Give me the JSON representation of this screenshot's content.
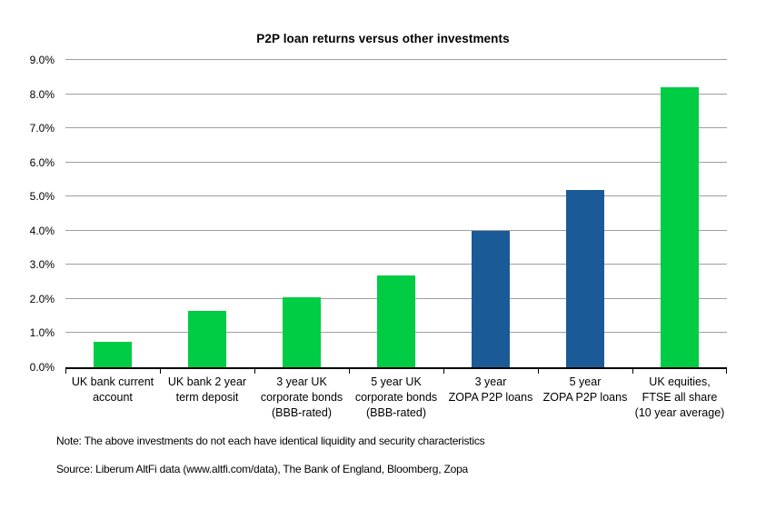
{
  "chart_data": {
    "type": "bar",
    "title": "P2P loan returns versus other investments",
    "categories": [
      "UK bank current\naccount",
      "UK bank 2 year\nterm deposit",
      "3 year UK\ncorporate bonds\n(BBB-rated)",
      "5 year UK\ncorporate bonds\n(BBB-rated)",
      "3 year\nZOPA P2P loans",
      "5 year\nZOPA P2P loans",
      "UK equities,\nFTSE all share\n(10 year average)"
    ],
    "values": [
      0.75,
      1.65,
      2.05,
      2.7,
      4.0,
      5.2,
      8.2
    ],
    "unit": "%",
    "bar_colors": [
      "#00CC44",
      "#00CC44",
      "#00CC44",
      "#00CC44",
      "#1A5A96",
      "#1A5A96",
      "#00CC44"
    ],
    "accent_green": "#00CC44",
    "accent_blue": "#1A5A96",
    "gridline_color": "#9E9E9E",
    "axis_color": "#000000",
    "ylim": [
      0,
      9
    ],
    "y_tick_labels": [
      "0.0%",
      "1.0%",
      "2.0%",
      "3.0%",
      "4.0%",
      "5.0%",
      "6.0%",
      "7.0%",
      "8.0%",
      "9.0%"
    ],
    "xlabel": "",
    "ylabel": "",
    "grid": true,
    "legend": "none"
  },
  "footnotes": {
    "note": "Note: The above investments do not each have identical liquidity and security characteristics",
    "source": "Source: Liberum AltFi data (www.altfi.com/data), The Bank of England, Bloomberg, Zopa"
  }
}
